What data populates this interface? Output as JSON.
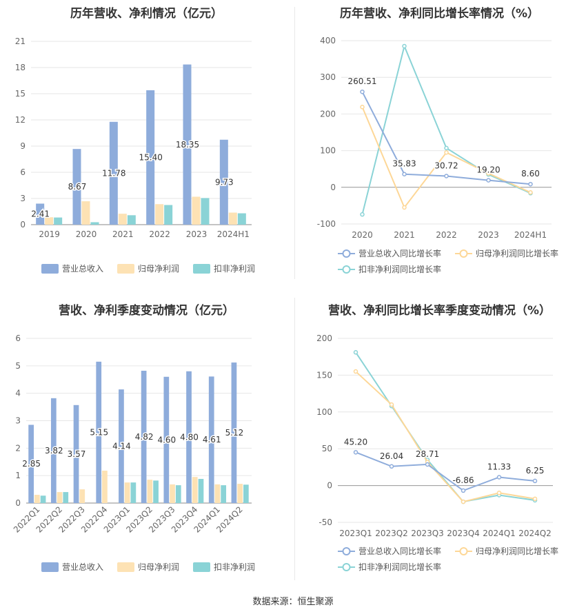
{
  "source": "数据来源：恒生聚源",
  "chart_data": [
    {
      "id": "annual_bar",
      "type": "bar",
      "title": "历年营收、净利情况（亿元）",
      "categories": [
        "2019",
        "2020",
        "2021",
        "2022",
        "2023",
        "2024H1"
      ],
      "series": [
        {
          "name": "营业总收入",
          "color": "#8eacdb",
          "values": [
            2.41,
            8.67,
            11.78,
            15.4,
            18.35,
            9.73
          ],
          "labels": [
            "2.41",
            "8.67",
            "11.78",
            "15.40",
            "18.35",
            "9.73"
          ]
        },
        {
          "name": "归母净利润",
          "color": "#fde2b4",
          "values": [
            0.85,
            2.68,
            1.25,
            2.35,
            3.2,
            1.38
          ]
        },
        {
          "name": "扣非净利润",
          "color": "#8ad3d6",
          "values": [
            0.82,
            0.28,
            1.08,
            2.25,
            3.05,
            1.3
          ]
        }
      ],
      "yticks": [
        "0",
        "3",
        "6",
        "9",
        "12",
        "15",
        "18",
        "21"
      ],
      "ylim": [
        0,
        21
      ]
    },
    {
      "id": "annual_line",
      "type": "line",
      "title": "历年营收、净利同比增长率情况（%）",
      "categories": [
        "2020",
        "2021",
        "2022",
        "2023",
        "2024H1"
      ],
      "series": [
        {
          "name": "营业总收入同比增长率",
          "color": "#8eacdb",
          "values": [
            260.51,
            35.83,
            30.72,
            19.2,
            8.6
          ],
          "labels": [
            "260.51",
            "35.83",
            "30.72",
            "19.20",
            "8.60"
          ]
        },
        {
          "name": "归母净利润同比增长率",
          "color": "#fdd797",
          "values": [
            219,
            -55,
            95,
            38,
            -14
          ]
        },
        {
          "name": "扣非净利润同比增长率",
          "color": "#8ad3d6",
          "values": [
            -74,
            385,
            107,
            35,
            -16
          ]
        }
      ],
      "yticks": [
        "-100",
        "0",
        "100",
        "200",
        "300",
        "400"
      ],
      "ylim": [
        -100,
        400
      ]
    },
    {
      "id": "quarter_bar",
      "type": "bar",
      "title": "营收、净利季度变动情况（亿元）",
      "categories": [
        "2022Q1",
        "2022Q2",
        "2022Q3",
        "2022Q4",
        "2023Q1",
        "2023Q2",
        "2023Q3",
        "2023Q4",
        "2024Q1",
        "2024Q2"
      ],
      "series": [
        {
          "name": "营业总收入",
          "color": "#8eacdb",
          "values": [
            2.85,
            3.82,
            3.57,
            5.15,
            4.14,
            4.82,
            4.6,
            4.8,
            4.61,
            5.12
          ],
          "labels": [
            "2.85",
            "3.82",
            "3.57",
            "5.15",
            "4.14",
            "4.82",
            "4.60",
            "4.80",
            "4.61",
            "5.12"
          ]
        },
        {
          "name": "归母净利润",
          "color": "#fde2b4",
          "values": [
            0.3,
            0.4,
            0.5,
            1.18,
            0.75,
            0.85,
            0.68,
            0.95,
            0.68,
            0.7
          ]
        },
        {
          "name": "扣非净利润",
          "color": "#8ad3d6",
          "values": [
            0.27,
            0.4,
            0.0,
            0.0,
            0.75,
            0.82,
            0.65,
            0.88,
            0.65,
            0.67
          ]
        }
      ],
      "yticks": [
        "0",
        "1",
        "2",
        "3",
        "4",
        "5",
        "6"
      ],
      "ylim": [
        0,
        6
      ]
    },
    {
      "id": "quarter_line",
      "type": "line",
      "title": "营收、净利同比增长率季度变动情况（%）",
      "categories": [
        "2023Q1",
        "2023Q2",
        "2023Q3",
        "2023Q4",
        "2024Q1",
        "2024Q2"
      ],
      "series": [
        {
          "name": "营业总收入同比增长率",
          "color": "#8eacdb",
          "values": [
            45.2,
            26.04,
            28.71,
            -6.86,
            11.33,
            6.25
          ],
          "labels": [
            "45.20",
            "26.04",
            "28.71",
            "-6.86",
            "11.33",
            "6.25"
          ]
        },
        {
          "name": "归母净利润同比增长率",
          "color": "#fdd797",
          "values": [
            155,
            110,
            32,
            -22,
            -10,
            -18
          ]
        },
        {
          "name": "扣非净利润同比增长率",
          "color": "#8ad3d6",
          "values": [
            181,
            108,
            35,
            -22,
            -13,
            -20
          ]
        }
      ],
      "yticks": [
        "-50",
        "0",
        "50",
        "100",
        "150",
        "200"
      ],
      "ylim": [
        -50,
        200
      ]
    }
  ]
}
